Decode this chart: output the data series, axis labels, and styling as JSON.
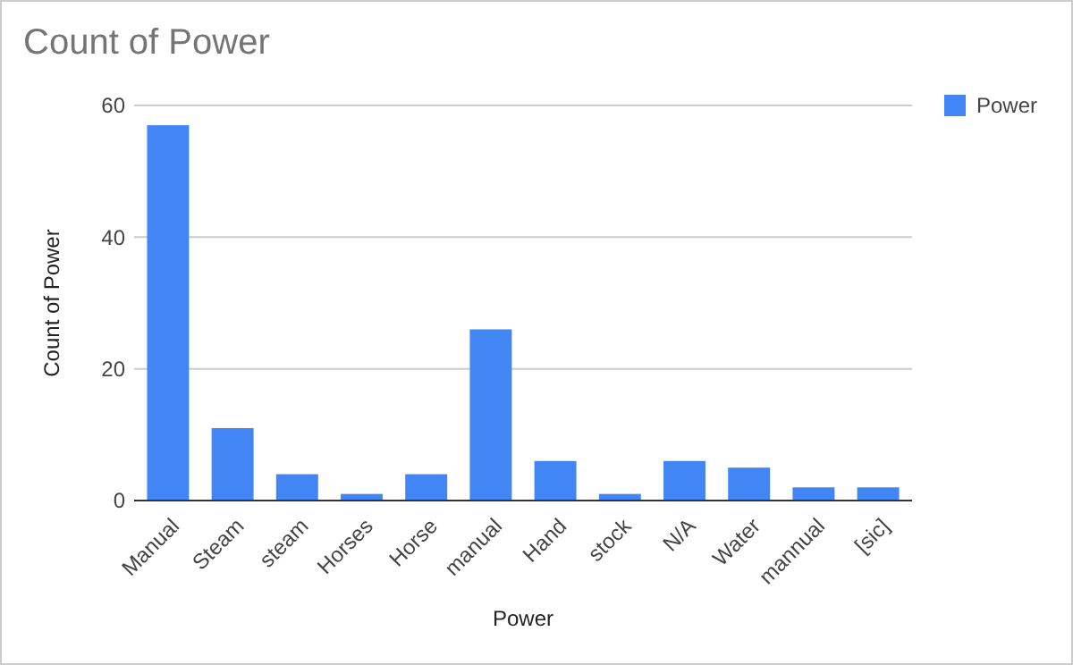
{
  "chart_data": {
    "type": "bar",
    "title": "Count of Power",
    "xlabel": "Power",
    "ylabel": "Count of Power",
    "categories": [
      "Manual",
      "Steam",
      "steam",
      "Horses",
      "Horse",
      "manual",
      "Hand",
      "stock",
      "N/A",
      "Water",
      "mannual",
      "[sic]"
    ],
    "series": [
      {
        "name": "Power",
        "color": "#4285f4",
        "values": [
          57,
          11,
          4,
          1,
          4,
          26,
          6,
          1,
          6,
          5,
          2,
          2
        ]
      }
    ],
    "ylim": [
      0,
      60
    ],
    "yticks": [
      0,
      20,
      40,
      60
    ],
    "grid": "y",
    "legend": "top right"
  }
}
